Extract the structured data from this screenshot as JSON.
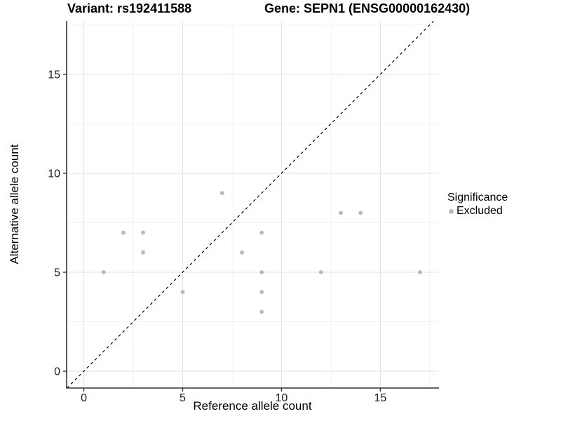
{
  "chart_data": {
    "type": "scatter",
    "titles": {
      "left": "Variant: rs192411588",
      "right": "Gene: SEPN1 (ENSG00000162430)"
    },
    "xlabel": "Reference allele count",
    "ylabel": "Alternative allele count",
    "xlim": [
      -0.87,
      17.93
    ],
    "ylim": [
      -0.85,
      17.69
    ],
    "x_major_ticks": [
      0,
      5,
      10,
      15
    ],
    "y_major_ticks": [
      0,
      5,
      10,
      15
    ],
    "x_minor_gridlines": [
      2.5,
      7.5,
      12.5,
      17.5
    ],
    "y_minor_gridlines": [
      2.5,
      7.5,
      12.5,
      17.5
    ],
    "grid": true,
    "identity_line": {
      "slope": 1,
      "intercept": 0,
      "style": "dashed",
      "color": "#000000"
    },
    "series": [
      {
        "name": "Excluded",
        "color": "#b9b9b9",
        "points": [
          [
            1,
            5
          ],
          [
            2,
            7
          ],
          [
            3,
            6
          ],
          [
            3,
            7
          ],
          [
            5,
            4
          ],
          [
            7,
            9
          ],
          [
            8,
            6
          ],
          [
            9,
            3
          ],
          [
            9,
            4
          ],
          [
            9,
            5
          ],
          [
            9,
            7
          ],
          [
            12,
            5
          ],
          [
            13,
            8
          ],
          [
            14,
            8
          ],
          [
            17,
            5
          ]
        ]
      }
    ],
    "legend": {
      "title": "Significance",
      "position": "right",
      "entries": [
        {
          "label": "Excluded",
          "color": "#b9b9b9"
        }
      ]
    },
    "colors": {
      "background": "#ffffff",
      "grid_major": "#e5e5e5",
      "grid_minor": "#f2f2f2",
      "axis_line": "#333333",
      "tick_mark": "#333333",
      "tick_label": "#1a1a1a",
      "point": "#b9b9b9"
    }
  }
}
